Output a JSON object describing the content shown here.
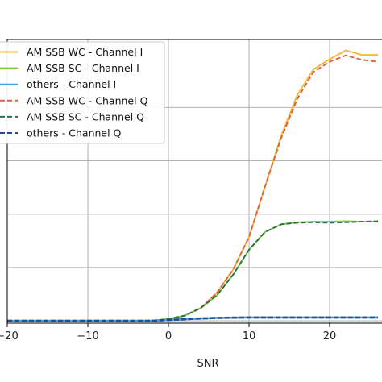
{
  "chart_data": {
    "type": "line",
    "title": "",
    "xlabel": "SNR",
    "ylabel": "",
    "xlim": [
      -20,
      27
    ],
    "ylim": [
      0,
      1
    ],
    "grid": true,
    "legend_position": "top-left",
    "x_ticks": [
      -20,
      -10,
      0,
      10,
      20
    ],
    "x_tick_labels": [
      "−20",
      "−10",
      "0",
      "10",
      "20"
    ],
    "y_gridlines": [
      0,
      0.21,
      0.42,
      0.63,
      0.84
    ],
    "x": [
      -20,
      -18,
      -16,
      -14,
      -12,
      -10,
      -8,
      -6,
      -4,
      -2,
      0,
      2,
      4,
      6,
      8,
      10,
      12,
      14,
      16,
      18,
      20,
      22,
      24,
      26
    ],
    "series": [
      {
        "name": "AM SSB WC - Channel I",
        "color": "#f0b83a",
        "dash": "solid",
        "values": [
          0,
          0,
          0,
          0,
          0,
          0,
          0,
          0,
          0,
          0,
          0.007,
          0.02,
          0.05,
          0.11,
          0.2,
          0.33,
          0.53,
          0.73,
          0.89,
          0.99,
          1.03,
          1.065,
          1.047,
          1.047
        ]
      },
      {
        "name": "AM SSB SC - Channel I",
        "color": "#72cc3c",
        "dash": "solid",
        "values": [
          0,
          0,
          0,
          0,
          0,
          0,
          0,
          0,
          0,
          0,
          0.007,
          0.02,
          0.05,
          0.1,
          0.18,
          0.28,
          0.35,
          0.38,
          0.388,
          0.39,
          0.39,
          0.392,
          0.39,
          0.39
        ]
      },
      {
        "name": "others - Channel I",
        "color": "#3f9de0",
        "dash": "solid",
        "values": [
          0,
          0,
          0,
          0,
          0,
          0,
          0,
          0,
          0,
          0,
          0.003,
          0.006,
          0.009,
          0.011,
          0.012,
          0.013,
          0.013,
          0.013,
          0.013,
          0.013,
          0.013,
          0.013,
          0.013,
          0.013
        ]
      },
      {
        "name": "AM SSB WC - Channel Q",
        "color": "#e0623c",
        "dash": "dashed",
        "values": [
          0,
          0,
          0,
          0,
          0,
          0,
          0,
          0,
          0,
          0,
          0.007,
          0.02,
          0.05,
          0.11,
          0.2,
          0.33,
          0.53,
          0.72,
          0.875,
          0.98,
          1.02,
          1.045,
          1.028,
          1.02
        ]
      },
      {
        "name": "AM SSB SC - Channel Q",
        "color": "#2f6b43",
        "dash": "dashed",
        "values": [
          0,
          0,
          0,
          0,
          0,
          0,
          0,
          0,
          0,
          0,
          0.007,
          0.02,
          0.05,
          0.1,
          0.18,
          0.28,
          0.35,
          0.38,
          0.386,
          0.388,
          0.386,
          0.388,
          0.39,
          0.392
        ]
      },
      {
        "name": "others - Channel Q",
        "color": "#1f4f8a",
        "dash": "dashed",
        "values": [
          0,
          0,
          0,
          0,
          0,
          0,
          0,
          0,
          0,
          0,
          0.003,
          0.006,
          0.009,
          0.011,
          0.012,
          0.013,
          0.013,
          0.013,
          0.013,
          0.013,
          0.013,
          0.013,
          0.013,
          0.013
        ]
      }
    ]
  }
}
